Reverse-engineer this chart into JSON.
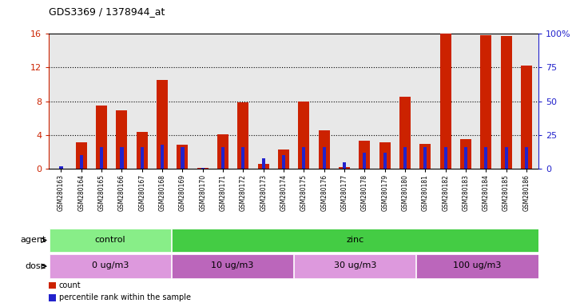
{
  "title": "GDS3369 / 1378944_at",
  "samples": [
    "GSM280163",
    "GSM280164",
    "GSM280165",
    "GSM280166",
    "GSM280167",
    "GSM280168",
    "GSM280169",
    "GSM280170",
    "GSM280171",
    "GSM280172",
    "GSM280173",
    "GSM280174",
    "GSM280175",
    "GSM280176",
    "GSM280177",
    "GSM280178",
    "GSM280179",
    "GSM280180",
    "GSM280181",
    "GSM280182",
    "GSM280183",
    "GSM280184",
    "GSM280185",
    "GSM280186"
  ],
  "count_values": [
    0.05,
    3.1,
    7.5,
    6.9,
    4.4,
    10.5,
    2.9,
    0.15,
    4.1,
    7.9,
    0.6,
    2.3,
    8.0,
    4.6,
    0.2,
    3.3,
    3.1,
    8.5,
    3.0,
    16.0,
    3.5,
    15.8,
    15.7,
    12.2
  ],
  "percentile_values": [
    2,
    10,
    16,
    16,
    16,
    18,
    16,
    1,
    16,
    16,
    8,
    10,
    16,
    16,
    5,
    12,
    12,
    16,
    16,
    16,
    16,
    16,
    16,
    16
  ],
  "count_color": "#cc2200",
  "percentile_color": "#2222cc",
  "ylim_left": [
    0,
    16
  ],
  "ylim_right": [
    0,
    100
  ],
  "yticks_left": [
    0,
    4,
    8,
    12,
    16
  ],
  "yticks_right": [
    0,
    25,
    50,
    75,
    100
  ],
  "left_tick_labels": [
    "0",
    "4",
    "8",
    "12",
    "16"
  ],
  "right_tick_labels": [
    "0",
    "25",
    "50",
    "75",
    "100%"
  ],
  "agent_groups": [
    {
      "label": "control",
      "start": 0,
      "end": 6,
      "color": "#88ee88"
    },
    {
      "label": "zinc",
      "start": 6,
      "end": 24,
      "color": "#44cc44"
    }
  ],
  "dose_groups": [
    {
      "label": "0 ug/m3",
      "start": 0,
      "end": 6,
      "color": "#dd99dd"
    },
    {
      "label": "10 ug/m3",
      "start": 6,
      "end": 12,
      "color": "#bb66bb"
    },
    {
      "label": "30 ug/m3",
      "start": 12,
      "end": 18,
      "color": "#dd99dd"
    },
    {
      "label": "100 ug/m3",
      "start": 18,
      "end": 24,
      "color": "#bb66bb"
    }
  ],
  "plot_bg_color": "#e8e8e8",
  "fig_bg_color": "#ffffff",
  "left_axis_color": "#cc2200",
  "right_axis_color": "#2222cc",
  "legend_items": [
    {
      "label": "count",
      "color": "#cc2200"
    },
    {
      "label": "percentile rank within the sample",
      "color": "#2222cc"
    }
  ]
}
